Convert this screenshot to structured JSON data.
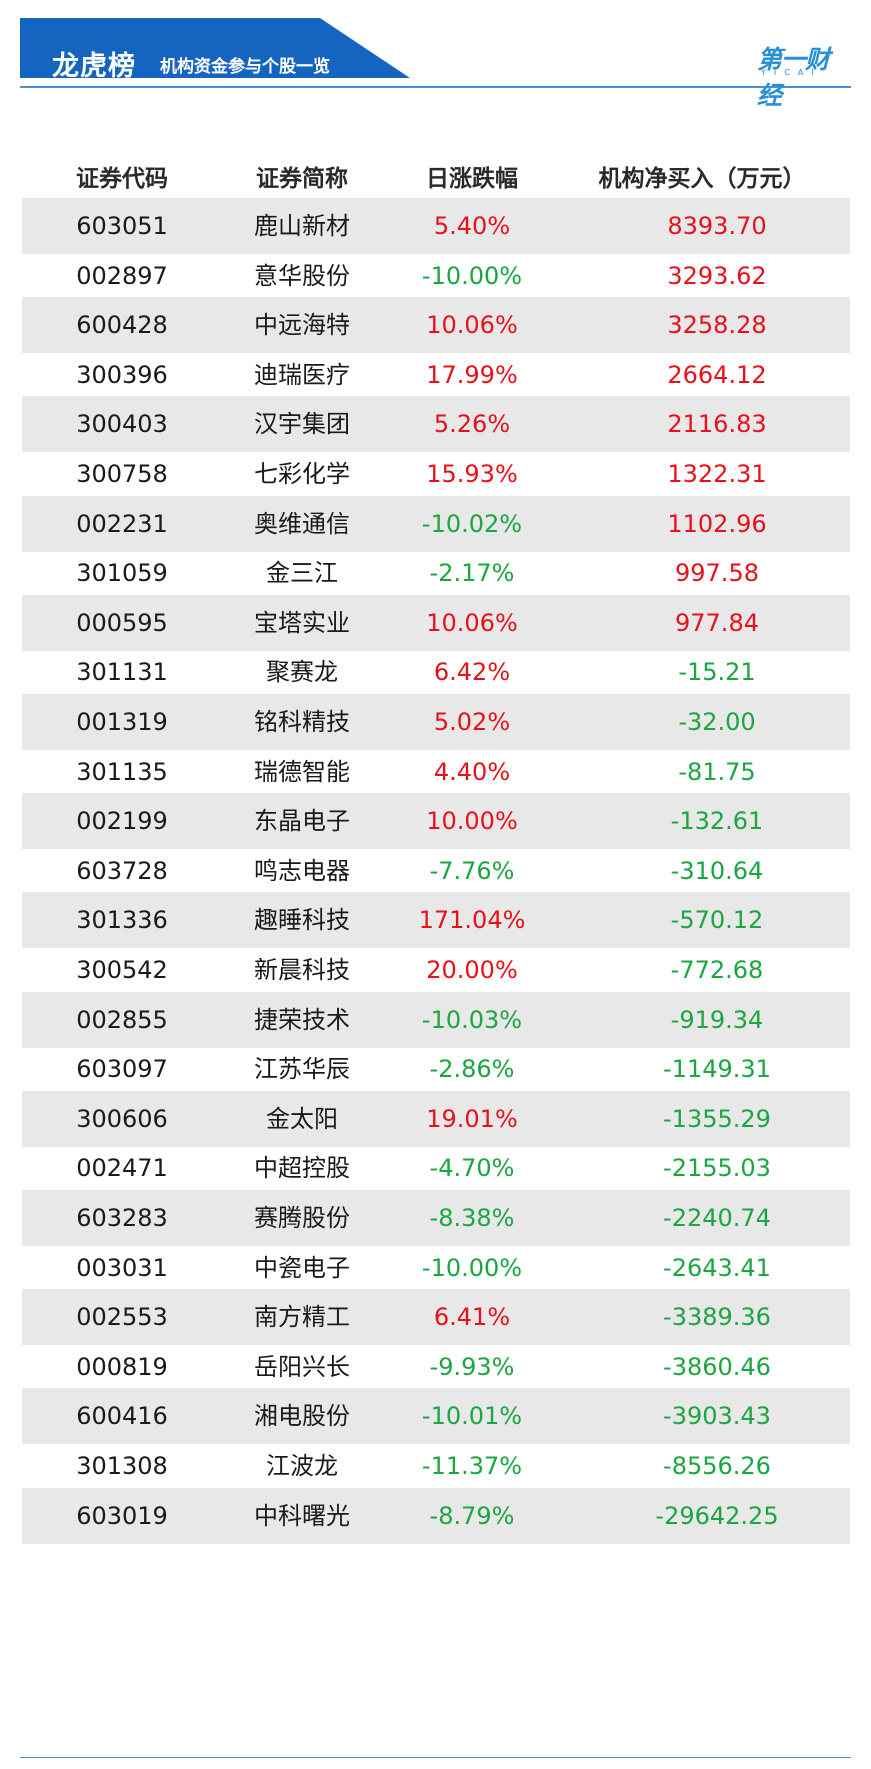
{
  "header": {
    "title": "龙虎榜",
    "subtitle": "机构资金参与个股一览",
    "brand_color": "#1565c0",
    "logo_text": "第一财经",
    "logo_sub": "YICAI"
  },
  "table": {
    "columns": [
      "证券代码",
      "证券简称",
      "日涨跌幅",
      "机构净买入（万元）"
    ],
    "positive_color": "#e8101a",
    "negative_color": "#1aa640",
    "rows": [
      {
        "code": "603051",
        "name": "鹿山新材",
        "change": "5.40%",
        "net_buy": "8393.70"
      },
      {
        "code": "002897",
        "name": "意华股份",
        "change": "-10.00%",
        "net_buy": "3293.62"
      },
      {
        "code": "600428",
        "name": "中远海特",
        "change": "10.06%",
        "net_buy": "3258.28"
      },
      {
        "code": "300396",
        "name": "迪瑞医疗",
        "change": "17.99%",
        "net_buy": "2664.12"
      },
      {
        "code": "300403",
        "name": "汉宇集团",
        "change": "5.26%",
        "net_buy": "2116.83"
      },
      {
        "code": "300758",
        "name": "七彩化学",
        "change": "15.93%",
        "net_buy": "1322.31"
      },
      {
        "code": "002231",
        "name": "奥维通信",
        "change": "-10.02%",
        "net_buy": "1102.96"
      },
      {
        "code": "301059",
        "name": "金三江",
        "change": "-2.17%",
        "net_buy": "997.58"
      },
      {
        "code": "000595",
        "name": "宝塔实业",
        "change": "10.06%",
        "net_buy": "977.84"
      },
      {
        "code": "301131",
        "name": "聚赛龙",
        "change": "6.42%",
        "net_buy": "-15.21"
      },
      {
        "code": "001319",
        "name": "铭科精技",
        "change": "5.02%",
        "net_buy": "-32.00"
      },
      {
        "code": "301135",
        "name": "瑞德智能",
        "change": "4.40%",
        "net_buy": "-81.75"
      },
      {
        "code": "002199",
        "name": "东晶电子",
        "change": "10.00%",
        "net_buy": "-132.61"
      },
      {
        "code": "603728",
        "name": "鸣志电器",
        "change": "-7.76%",
        "net_buy": "-310.64"
      },
      {
        "code": "301336",
        "name": "趣睡科技",
        "change": "171.04%",
        "net_buy": "-570.12"
      },
      {
        "code": "300542",
        "name": "新晨科技",
        "change": "20.00%",
        "net_buy": "-772.68"
      },
      {
        "code": "002855",
        "name": "捷荣技术",
        "change": "-10.03%",
        "net_buy": "-919.34"
      },
      {
        "code": "603097",
        "name": "江苏华辰",
        "change": "-2.86%",
        "net_buy": "-1149.31"
      },
      {
        "code": "300606",
        "name": "金太阳",
        "change": "19.01%",
        "net_buy": "-1355.29"
      },
      {
        "code": "002471",
        "name": "中超控股",
        "change": "-4.70%",
        "net_buy": "-2155.03"
      },
      {
        "code": "603283",
        "name": "赛腾股份",
        "change": "-8.38%",
        "net_buy": "-2240.74"
      },
      {
        "code": "003031",
        "name": "中瓷电子",
        "change": "-10.00%",
        "net_buy": "-2643.41"
      },
      {
        "code": "002553",
        "name": "南方精工",
        "change": "6.41%",
        "net_buy": "-3389.36"
      },
      {
        "code": "000819",
        "name": "岳阳兴长",
        "change": "-9.93%",
        "net_buy": "-3860.46"
      },
      {
        "code": "600416",
        "name": "湘电股份",
        "change": "-10.01%",
        "net_buy": "-3903.43"
      },
      {
        "code": "301308",
        "name": "江波龙",
        "change": "-11.37%",
        "net_buy": "-8556.26"
      },
      {
        "code": "603019",
        "name": "中科曙光",
        "change": "-8.79%",
        "net_buy": "-29642.25"
      }
    ]
  }
}
